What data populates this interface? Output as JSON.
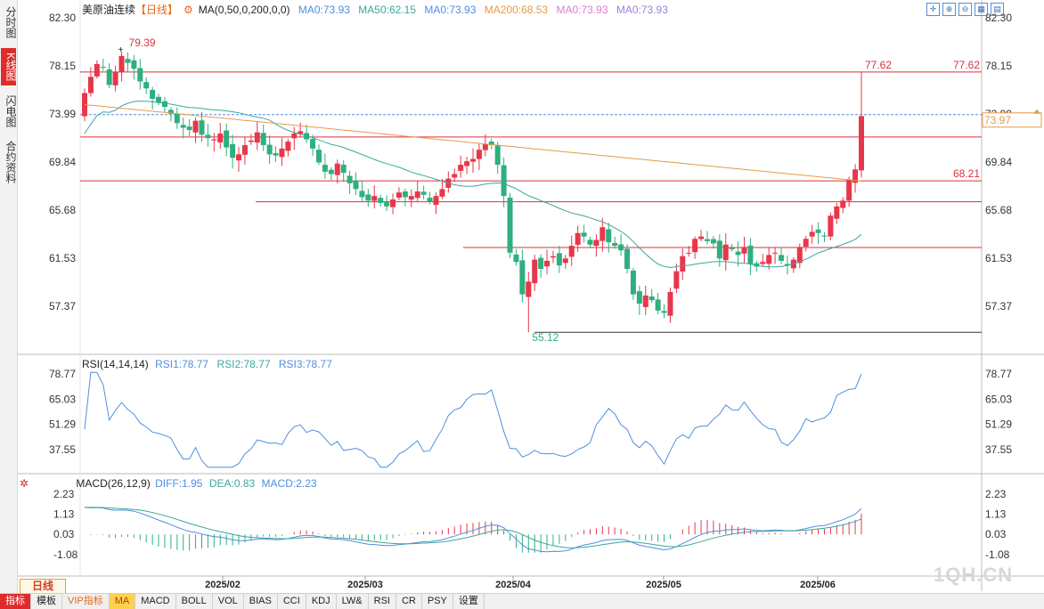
{
  "sidebar": {
    "items": [
      "分时图",
      "K线图",
      "闪电图",
      "合约资料"
    ],
    "active": 1
  },
  "header": {
    "title": "美原油连续",
    "period_tag": "【日线】",
    "gear_icon": "gear-icon",
    "ma_label": "MA(0,50,0,200,0,0)",
    "ma": [
      {
        "label": "MA0:73.93",
        "color": "#4f8fe0"
      },
      {
        "label": "MA50:62.15",
        "color": "#3aa89c"
      },
      {
        "label": "MA0:73.93",
        "color": "#4f8fe0"
      },
      {
        "label": "MA200:68.53",
        "color": "#e69a4a"
      },
      {
        "label": "MA0:73.93",
        "color": "#e07ad6"
      },
      {
        "label": "MA0:73.93",
        "color": "#9b7fe0"
      }
    ]
  },
  "toolbar_icons": [
    "crosshair-icon",
    "zoom-in-icon",
    "zoom-out-icon",
    "grid-icon",
    "layout-icon"
  ],
  "price_axis": {
    "ticks": [
      "82.30",
      "78.15",
      "73.99",
      "69.84",
      "65.68",
      "61.53",
      "57.37"
    ],
    "current": "73.97"
  },
  "annotations": {
    "high": "79.39",
    "low": "55.12",
    "line_top": "77.62",
    "line_top_right": "77.62",
    "line_mid": "68.21"
  },
  "rsi": {
    "label": "RSI(14,14,14)",
    "values": [
      {
        "label": "RSI1:78.77",
        "color": "#4f8fe0"
      },
      {
        "label": "RSI2:78.77",
        "color": "#3aa89c"
      },
      {
        "label": "RSI3:78.77",
        "color": "#4f8fe0"
      }
    ],
    "ticks": [
      "78.77",
      "65.03",
      "51.29",
      "37.55"
    ]
  },
  "macd": {
    "label": "MACD(26,12,9)",
    "values": [
      {
        "label": "DIFF:1.95",
        "color": "#4f8fe0"
      },
      {
        "label": "DEA:0.83",
        "color": "#3aa89c"
      },
      {
        "label": "MACD:2.23",
        "color": "#4f8fe0"
      }
    ],
    "ticks": [
      "2.23",
      "1.13",
      "0.03",
      "-1.08"
    ]
  },
  "time_axis": [
    "2025/02",
    "2025/03",
    "2025/04",
    "2025/05",
    "2025/06"
  ],
  "period_button": "日线",
  "bottom_tabs": [
    "指标",
    "模板",
    "VIP指标",
    "MA",
    "MACD",
    "BOLL",
    "VOL",
    "BIAS",
    "CCI",
    "KDJ",
    "LW&",
    "RSI",
    "CR",
    "PSY",
    "设置"
  ],
  "watermark": "1QH.CN",
  "chart_data": {
    "type": "candlestick",
    "price_range": [
      55.12,
      79.39
    ],
    "closes": [
      75.8,
      77.2,
      78.3,
      78.0,
      76.5,
      77.6,
      79.0,
      78.4,
      77.9,
      76.8,
      76.2,
      75.3,
      75.0,
      74.6,
      74.0,
      73.2,
      72.8,
      72.6,
      73.4,
      72.2,
      71.9,
      71.8,
      72.3,
      71.1,
      70.2,
      70.5,
      71.3,
      71.7,
      72.4,
      71.3,
      70.5,
      70.4,
      71.0,
      71.6,
      72.3,
      72.5,
      71.8,
      71.0,
      69.8,
      69.0,
      68.8,
      69.7,
      68.9,
      68.0,
      67.5,
      66.8,
      66.5,
      66.9,
      66.3,
      66.0,
      66.6,
      67.2,
      66.8,
      66.9,
      67.3,
      67.0,
      66.4,
      66.9,
      67.5,
      68.4,
      68.8,
      69.6,
      69.9,
      70.1,
      70.9,
      71.4,
      71.3,
      69.6,
      66.9,
      62.0,
      61.2,
      58.4,
      59.5,
      61.4,
      60.6,
      61.3,
      61.7,
      60.9,
      61.5,
      62.6,
      63.7,
      63.4,
      62.7,
      63.1,
      64.2,
      62.9,
      62.6,
      62.2,
      60.6,
      58.4,
      57.6,
      58.3,
      57.9,
      57.0,
      56.8,
      58.6,
      60.4,
      61.7,
      62.0,
      63.2,
      63.4,
      63.0,
      62.8,
      61.5,
      62.7,
      62.3,
      61.8,
      62.5,
      61.0,
      60.8,
      61.2,
      61.8,
      62.0,
      61.3,
      60.9,
      61.4,
      62.5,
      63.2,
      63.8,
      63.7,
      63.4,
      65.2,
      66.0,
      66.5,
      68.3,
      69.2,
      73.8
    ]
  }
}
